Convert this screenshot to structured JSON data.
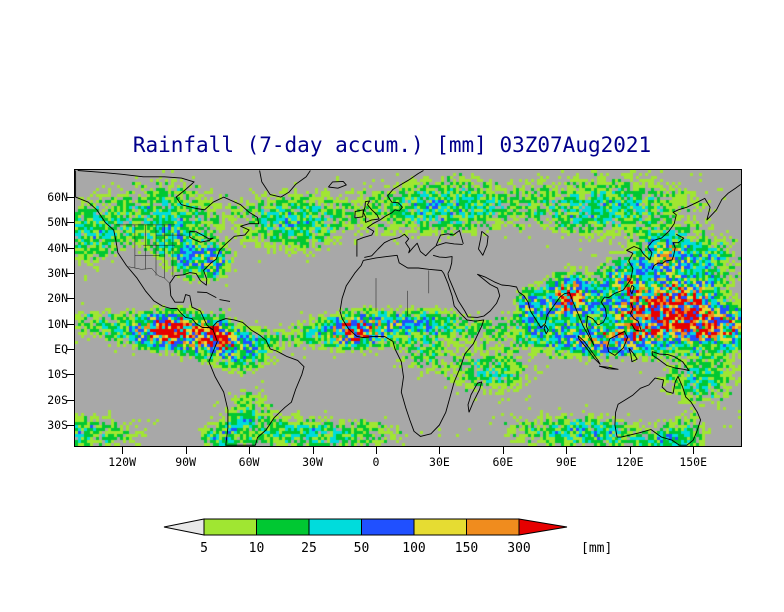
{
  "chart_data": {
    "type": "heatmap",
    "title": "Rainfall (7-day accum.) [mm] 03Z07Aug2021",
    "field": "7-day accumulated rainfall",
    "units": "mm",
    "valid_label": "03Z07Aug2021",
    "lat_ticks": [
      "60N",
      "50N",
      "40N",
      "30N",
      "20N",
      "10N",
      "EQ",
      "10S",
      "20S",
      "30S"
    ],
    "lon_ticks": [
      "120W",
      "90W",
      "60W",
      "30W",
      "0",
      "30E",
      "60E",
      "90E",
      "120E",
      "150E"
    ],
    "lat_range_deg": [
      -38.3,
      70.7
    ],
    "lon_range_deg": [
      -142.3,
      172.6
    ],
    "grid": false,
    "legend_position": "bottom",
    "map_fill_color": "#a8a8a8",
    "coastline_color": "#000000",
    "title_color": "#00008b",
    "colorbar": {
      "unit_label": "[mm]",
      "tick_labels": [
        "5",
        "10",
        "25",
        "50",
        "100",
        "150",
        "300"
      ],
      "bins": [
        "<5",
        "5-10",
        "10-25",
        "25-50",
        "50-100",
        "100-150",
        "150-300",
        ">300"
      ],
      "colors": [
        "#e8e8e8",
        "#a0e632",
        "#00c832",
        "#00dcdc",
        "#2050ff",
        "#e6dc32",
        "#f08c1e",
        "#e60000"
      ]
    }
  }
}
